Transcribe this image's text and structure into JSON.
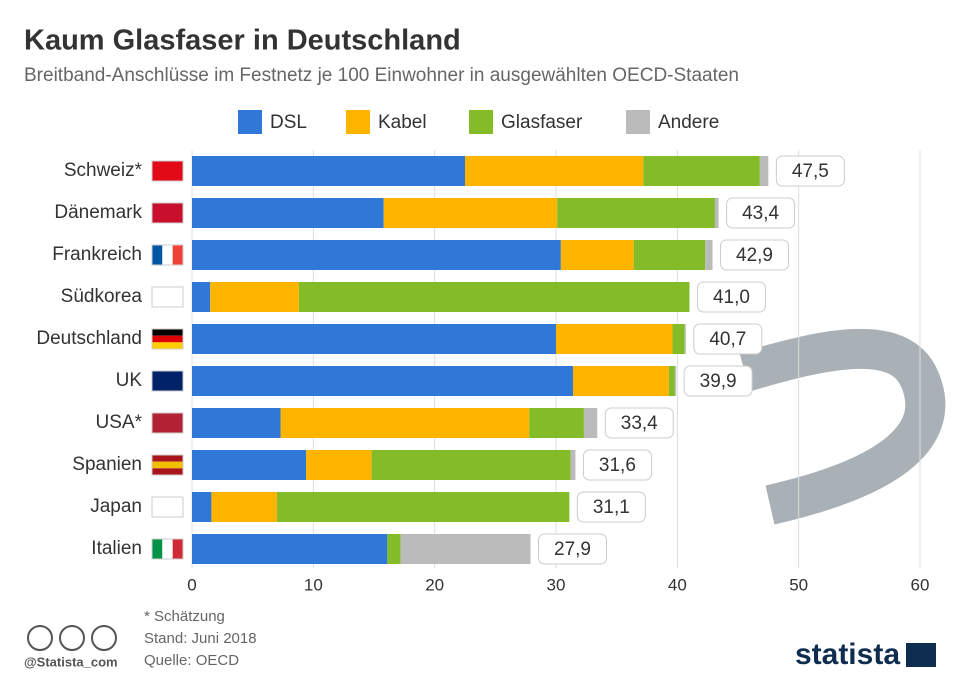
{
  "chart_data": {
    "type": "stacked-bar-horizontal",
    "title": "Kaum Glasfaser in Deutschland",
    "subtitle": "Breitband-Anschlüsse im Festnetz je 100 Einwohner in ausgewählten OECD-Staaten",
    "categories": [
      "Schweiz*",
      "Dänemark",
      "Frankreich",
      "Südkorea",
      "Deutschland",
      "UK",
      "USA*",
      "Spanien",
      "Japan",
      "Italien"
    ],
    "series": [
      {
        "name": "DSL",
        "color": "#2f78d7",
        "values": [
          22.5,
          15.8,
          30.4,
          1.5,
          30.0,
          31.4,
          7.3,
          9.4,
          1.6,
          16.1
        ]
      },
      {
        "name": "Kabel",
        "color": "#ffb400",
        "values": [
          14.7,
          14.3,
          6.0,
          7.3,
          9.6,
          7.9,
          20.5,
          5.4,
          5.4,
          0
        ]
      },
      {
        "name": "Glasfaser",
        "color": "#83bc28",
        "values": [
          9.6,
          13.0,
          5.9,
          32.2,
          1.0,
          0.5,
          4.5,
          16.4,
          24.1,
          1.1
        ]
      },
      {
        "name": "Andere",
        "color": "#bbbbbb",
        "values": [
          0.7,
          0.3,
          0.6,
          0,
          0.1,
          0.1,
          1.1,
          0.4,
          0,
          10.7
        ]
      }
    ],
    "totals": [
      47.5,
      43.4,
      42.9,
      41.0,
      40.7,
      39.9,
      33.4,
      31.6,
      31.1,
      27.9
    ],
    "total_labels": [
      "47,5",
      "43,4",
      "42,9",
      "41,0",
      "40,7",
      "39,9",
      "33,4",
      "31,6",
      "31,1",
      "27,9"
    ],
    "xlim": [
      0,
      60
    ],
    "xticks": [
      0,
      10,
      20,
      30,
      40,
      50,
      60
    ],
    "grid": true,
    "notes": [
      "* Schätzung",
      "Stand: Juni 2018",
      "Quelle: OECD"
    ],
    "handle": "@Statista_com",
    "brand": "statista"
  }
}
